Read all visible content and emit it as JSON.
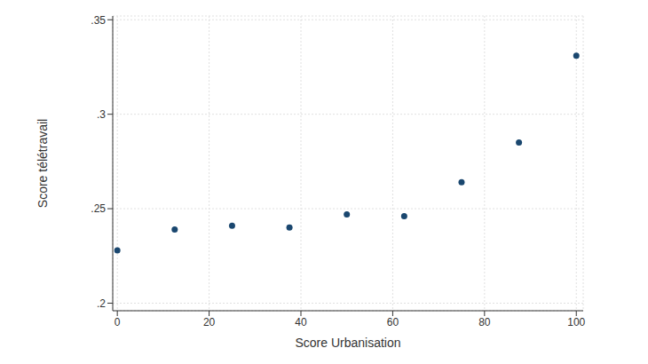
{
  "chart_data": {
    "type": "scatter",
    "x_label": "Score Urbanisation",
    "y_label": "Score télétravail",
    "x": [
      0,
      12.5,
      25,
      37.5,
      50,
      62.5,
      75,
      87.5,
      100
    ],
    "values": [
      0.228,
      0.239,
      0.241,
      0.24,
      0.247,
      0.246,
      0.264,
      0.285,
      0.331
    ],
    "color": "#1a476f",
    "marker": "circle",
    "xlim": [
      -1,
      101.5
    ],
    "xticks": [
      0,
      20,
      40,
      60,
      80,
      100
    ],
    "ylim": [
      0.196,
      0.352
    ],
    "yticks": [
      {
        "value": 0.2,
        "label": ".2"
      },
      {
        "value": 0.25,
        "label": ".25"
      },
      {
        "value": 0.3,
        "label": ".3"
      },
      {
        "value": 0.35,
        "label": ".35"
      }
    ],
    "grid": true
  }
}
